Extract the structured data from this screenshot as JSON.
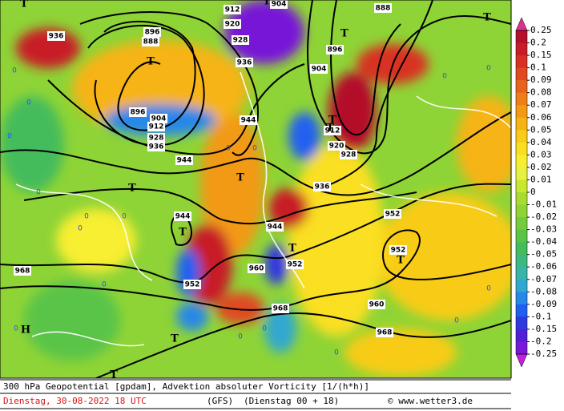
{
  "map": {
    "contour_labels": [
      "936",
      "896",
      "888",
      "912",
      "920",
      "928",
      "936",
      "896",
      "904",
      "912",
      "928",
      "936",
      "944",
      "944",
      "904",
      "896",
      "912",
      "920",
      "928",
      "936",
      "944",
      "944",
      "952",
      "952",
      "960",
      "968",
      "952",
      "952",
      "960",
      "968",
      "968",
      "888",
      "904"
    ],
    "symbols": [
      "T",
      "T",
      "T",
      "T",
      "T",
      "T",
      "T",
      "T",
      "T",
      "T",
      "T",
      "T",
      "H",
      "T",
      "T"
    ],
    "zero_labels": [
      "0",
      "0",
      "0",
      "0",
      "0",
      "0",
      "0",
      "0",
      "0",
      "0",
      "0",
      "0",
      "0",
      "0",
      "0",
      "0",
      "0",
      "0"
    ]
  },
  "colorbar": {
    "labels": [
      "0.25",
      "0.2",
      "0.15",
      "0.1",
      "0.09",
      "0.08",
      "0.07",
      "0.06",
      "0.05",
      "0.04",
      "0.03",
      "0.02",
      "0.01",
      "0",
      "-0.01",
      "-0.02",
      "-0.03",
      "-0.04",
      "-0.05",
      "-0.06",
      "-0.07",
      "-0.08",
      "-0.09",
      "-0.1",
      "-0.15",
      "-0.2",
      "-0.25"
    ],
    "colors": [
      "#b4102c",
      "#c81c28",
      "#d83024",
      "#e04a20",
      "#e8641c",
      "#ee7e18",
      "#f29a14",
      "#f6b414",
      "#f8cc18",
      "#fadf20",
      "#f8ee30",
      "#e8f040",
      "#c8e830",
      "#a8dc30",
      "#8ed436",
      "#74cc3c",
      "#5ac448",
      "#44bc5c",
      "#3cb880",
      "#38b4a8",
      "#30a8d0",
      "#2888e8",
      "#2060f0",
      "#3038e0",
      "#5020d8",
      "#7818d8",
      "#a010d8"
    ],
    "top_color": "#e0308f",
    "bottom_color": "#c020e0"
  },
  "caption": {
    "line1": "300 hPa Geopotential [gpdam], Advektion absoluter Vorticity [1/(h*h)]",
    "date": "Dienstag, 30-08-2022  18 UTC",
    "model": "(GFS)",
    "run": "(Dienstag 00 + 18)",
    "credit": "© www.wetter3.de"
  }
}
